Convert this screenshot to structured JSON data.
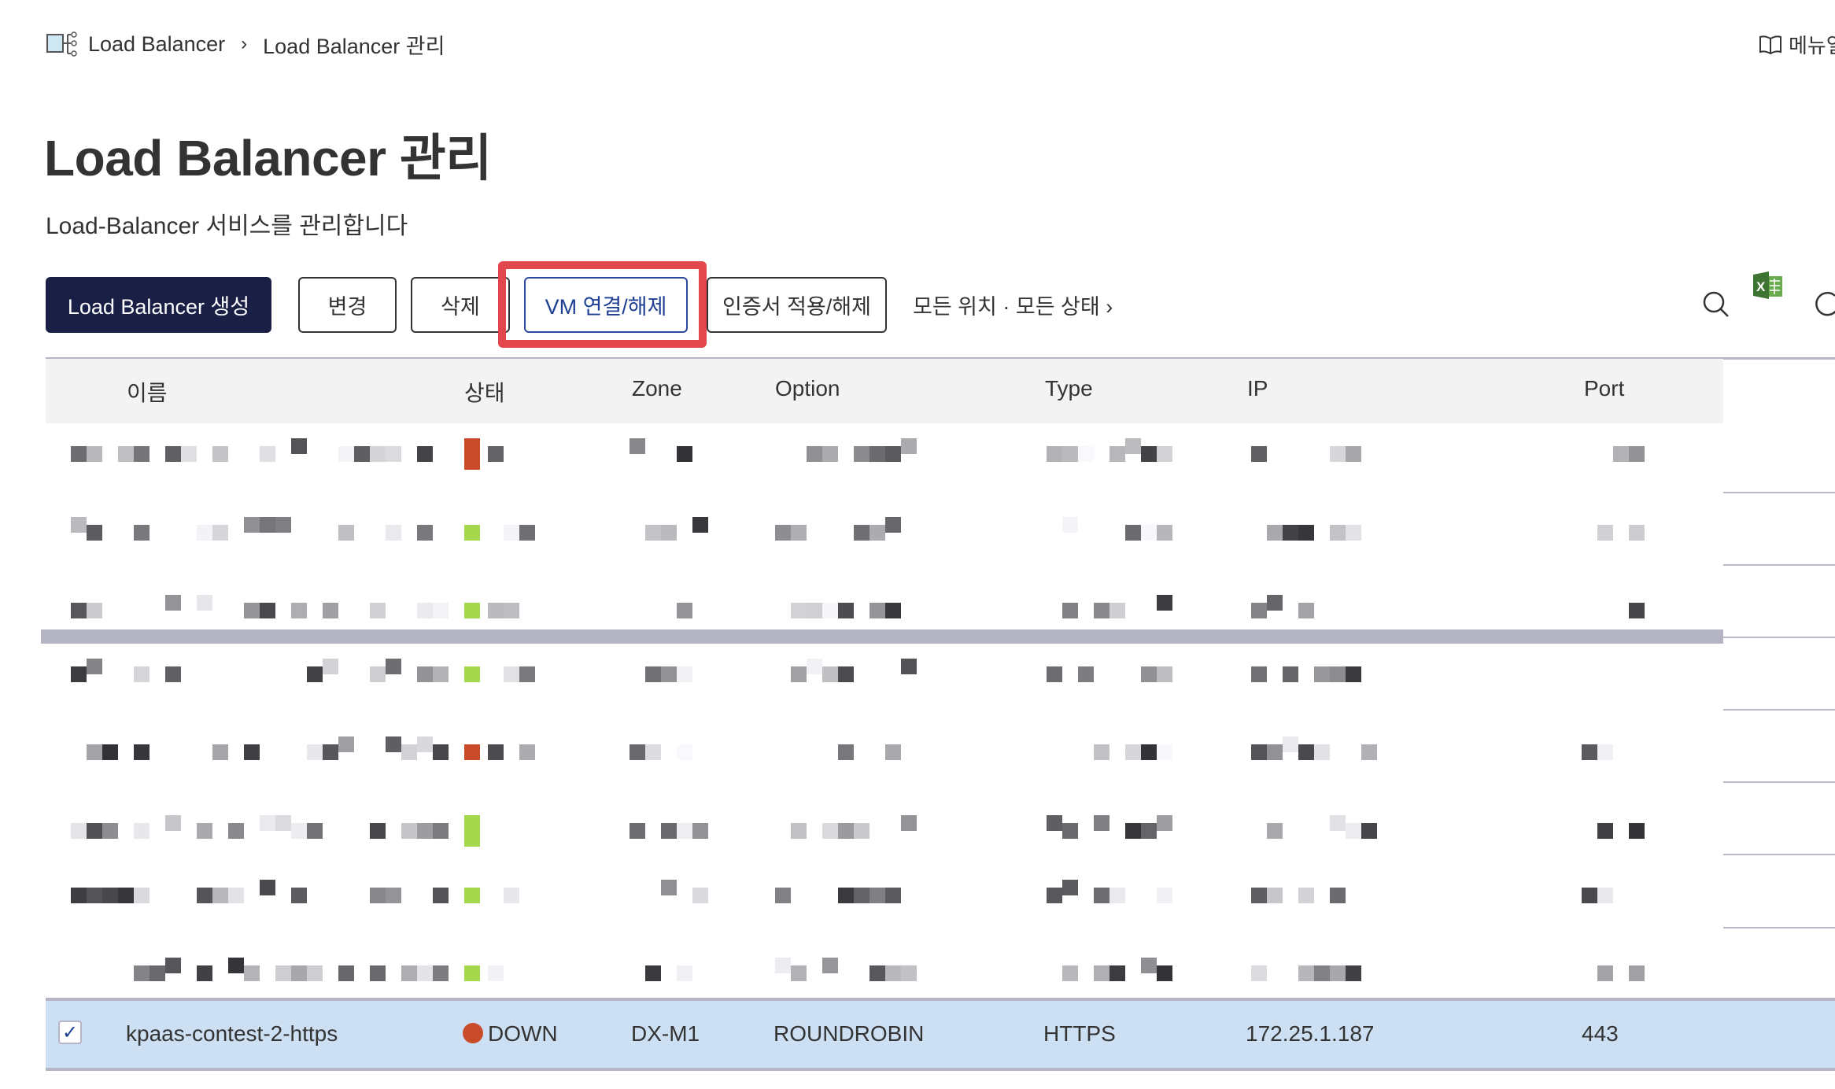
{
  "breadcrumb": {
    "items": [
      "Load Balancer",
      "Load Balancer 관리"
    ],
    "separator": "›",
    "icon": "load-balancer-icon"
  },
  "manual": {
    "label": "메뉴얼",
    "icon": "book-icon"
  },
  "page": {
    "title": "Load Balancer 관리",
    "subtitle": "Load-Balancer 서비스를 관리합니다"
  },
  "toolbar": {
    "create_label": "Load Balancer 생성",
    "edit_label": "변경",
    "delete_label": "삭제",
    "vm_label": "VM 연결/해제",
    "cert_label": "인증서 적용/해제",
    "filter_label": "모든 위치 · 모든 상태 ›",
    "icons": [
      "search-icon",
      "excel-icon",
      "refresh-icon"
    ]
  },
  "colors": {
    "primary": "#1a1f45",
    "highlight": "#e2474d",
    "status_down": "#c94b2a",
    "status_up": "#a6d84e",
    "selected_row": "#cddff2"
  },
  "table": {
    "columns": [
      "이름",
      "상태",
      "Zone",
      "Option",
      "Type",
      "IP",
      "Port"
    ],
    "redacted_rows": [
      {
        "status_color": "#c94b2a"
      },
      {
        "status_color": "#a6d84e"
      },
      {
        "status_color": "#a6d84e"
      },
      {
        "status_color": "#a6d84e"
      },
      {
        "status_color": "#c94b2a"
      },
      {
        "status_color": "#a6d84e"
      },
      {
        "status_color": "#a6d84e"
      },
      {
        "status_color": "#a6d84e"
      }
    ],
    "selected_row": {
      "checked": true,
      "name": "kpaas-contest-2-https",
      "status": "DOWN",
      "status_color": "#c94b2a",
      "zone": "DX-M1",
      "option": "ROUNDROBIN",
      "type": "HTTPS",
      "ip": "172.25.1.187",
      "port": "443"
    }
  }
}
